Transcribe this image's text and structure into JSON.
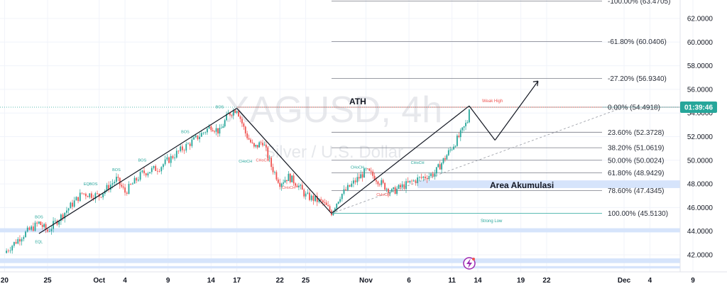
{
  "symbol": "XAGUSD",
  "timeframe": "4h",
  "watermark": {
    "main": "XAGUSD, 4h",
    "sub": "Silver / U.S. Dollar"
  },
  "countdown": "01:39:46",
  "annotations": {
    "ath": "ATH",
    "weak_high": "Weak High",
    "strong_low": "Strong Low",
    "area": "Area Akumulasi",
    "equal_lows": "EQL"
  },
  "colors": {
    "bull": "#26a69a",
    "bear": "#ef5350",
    "zone": "#d6e4fb",
    "countdown_bg": "#26a69a"
  },
  "chart_data": {
    "type": "candlestick",
    "x_ticks": [
      "20",
      "25",
      "Oct",
      "4",
      "9",
      "14",
      "17",
      "22",
      "25",
      "Nov",
      "6",
      "11",
      "14",
      "19",
      "22",
      "Dec",
      "4",
      "9"
    ],
    "y_ticks": [
      42.0,
      44.0,
      46.0,
      48.0,
      50.0,
      52.0,
      54.0,
      56.0,
      58.0,
      60.0,
      62.0
    ],
    "y_range": [
      40.8,
      64.1
    ],
    "fib_levels": [
      {
        "ratio": "-100.00%",
        "price": 63.4705
      },
      {
        "ratio": "-61.80%",
        "price": 60.0406
      },
      {
        "ratio": "-27.20%",
        "price": 56.934
      },
      {
        "ratio": "0.00%",
        "price": 54.4918
      },
      {
        "ratio": "23.60%",
        "price": 52.3728
      },
      {
        "ratio": "38.20%",
        "price": 51.0619
      },
      {
        "ratio": "50.00%",
        "price": 50.0024
      },
      {
        "ratio": "61.80%",
        "price": 48.9429
      },
      {
        "ratio": "78.60%",
        "price": 47.4345
      },
      {
        "ratio": "100.00%",
        "price": 45.513
      }
    ],
    "current_price": 54.4918,
    "structure_labels": [
      {
        "text": "BOS",
        "date": "Sep 24",
        "price": 45.1
      },
      {
        "text": "EQL",
        "date": "Sep 24",
        "price": 43.0
      },
      {
        "text": "EQBOS",
        "date": "Sep 30",
        "price": 47.9
      },
      {
        "text": "BOS",
        "date": "Oct 3",
        "price": 49.1
      },
      {
        "text": "BOS",
        "date": "Oct 6",
        "price": 49.9
      },
      {
        "text": "BOS",
        "date": "Oct 11",
        "price": 52.3
      },
      {
        "text": "BOS",
        "date": "Oct 15",
        "price": 54.4
      },
      {
        "text": "CHoCH",
        "date": "Oct 18",
        "price": 49.8
      },
      {
        "text": "CHoCH",
        "date": "Oct 20",
        "price": 49.9
      },
      {
        "text": "CHoCH",
        "date": "Oct 23",
        "price": 47.6
      },
      {
        "text": "CHoCH",
        "date": "Oct 31",
        "price": 49.3
      },
      {
        "text": "CHoCH",
        "date": "Nov 3",
        "price": 47.0
      },
      {
        "text": "CHoCH",
        "date": "Nov 7",
        "price": 49.7
      }
    ],
    "price_path": [
      [
        "Sep 20",
        42.2
      ],
      [
        "Sep 22",
        43.6
      ],
      [
        "Sep 24",
        44.7
      ],
      [
        "Sep 25",
        44.0
      ],
      [
        "Sep 27",
        45.6
      ],
      [
        "Sep 29",
        47.2
      ],
      [
        "Oct 1",
        47.0
      ],
      [
        "Oct 3",
        48.4
      ],
      [
        "Oct 4",
        47.3
      ],
      [
        "Oct 6",
        48.9
      ],
      [
        "Oct 8",
        49.4
      ],
      [
        "Oct 10",
        50.6
      ],
      [
        "Oct 12",
        51.7
      ],
      [
        "Oct 14",
        52.9
      ],
      [
        "Oct 15",
        52.4
      ],
      [
        "Oct 16",
        53.9
      ],
      [
        "Oct 17",
        54.4
      ],
      [
        "Oct 18",
        52.3
      ],
      [
        "Oct 19",
        51.0
      ],
      [
        "Oct 20",
        51.6
      ],
      [
        "Oct 21",
        49.5
      ],
      [
        "Oct 22",
        48.1
      ],
      [
        "Oct 23",
        48.6
      ],
      [
        "Oct 24",
        48.0
      ],
      [
        "Oct 25",
        47.0
      ],
      [
        "Oct 27",
        46.4
      ],
      [
        "Oct 28",
        45.6
      ],
      [
        "Oct 29",
        47.0
      ],
      [
        "Oct 31",
        48.4
      ],
      [
        "Nov 1",
        49.1
      ],
      [
        "Nov 2",
        48.6
      ],
      [
        "Nov 3",
        47.9
      ],
      [
        "Nov 4",
        47.3
      ],
      [
        "Nov 5",
        47.7
      ],
      [
        "Nov 7",
        48.4
      ],
      [
        "Nov 9",
        48.9
      ],
      [
        "Nov 10",
        50.0
      ],
      [
        "Nov 11",
        51.1
      ],
      [
        "Nov 12",
        52.2
      ],
      [
        "Nov 13",
        53.6
      ],
      [
        "Nov 13",
        54.4
      ]
    ],
    "trend_lines": [
      {
        "from": [
          "Sep 24",
          43.8
        ],
        "to": [
          "Oct 17",
          54.4
        ]
      },
      {
        "from": [
          "Oct 17",
          54.4
        ],
        "to": [
          "Oct 28",
          45.5
        ]
      },
      {
        "from": [
          "Oct 28",
          45.5
        ],
        "to": [
          "Nov 13",
          54.6
        ]
      },
      {
        "from": [
          "Nov 13",
          54.6
        ],
        "to": [
          "Nov 16",
          51.7
        ]
      },
      {
        "from": [
          "Nov 16",
          51.7
        ],
        "to": [
          "Nov 21",
          56.7
        ]
      }
    ],
    "dashed_trend": {
      "from": [
        "Oct 28",
        45.5
      ],
      "to": [
        "Dec 1",
        54.5
      ]
    },
    "zones": [
      {
        "label": "Area Akumulasi",
        "price_top": 48.3,
        "price_bottom": 47.65
      },
      {
        "price_top": 44.25,
        "price_bottom": 43.9
      },
      {
        "price_top": 41.7,
        "price_bottom": 41.3
      },
      {
        "price_top": 41.05,
        "price_bottom": 40.85
      }
    ]
  }
}
